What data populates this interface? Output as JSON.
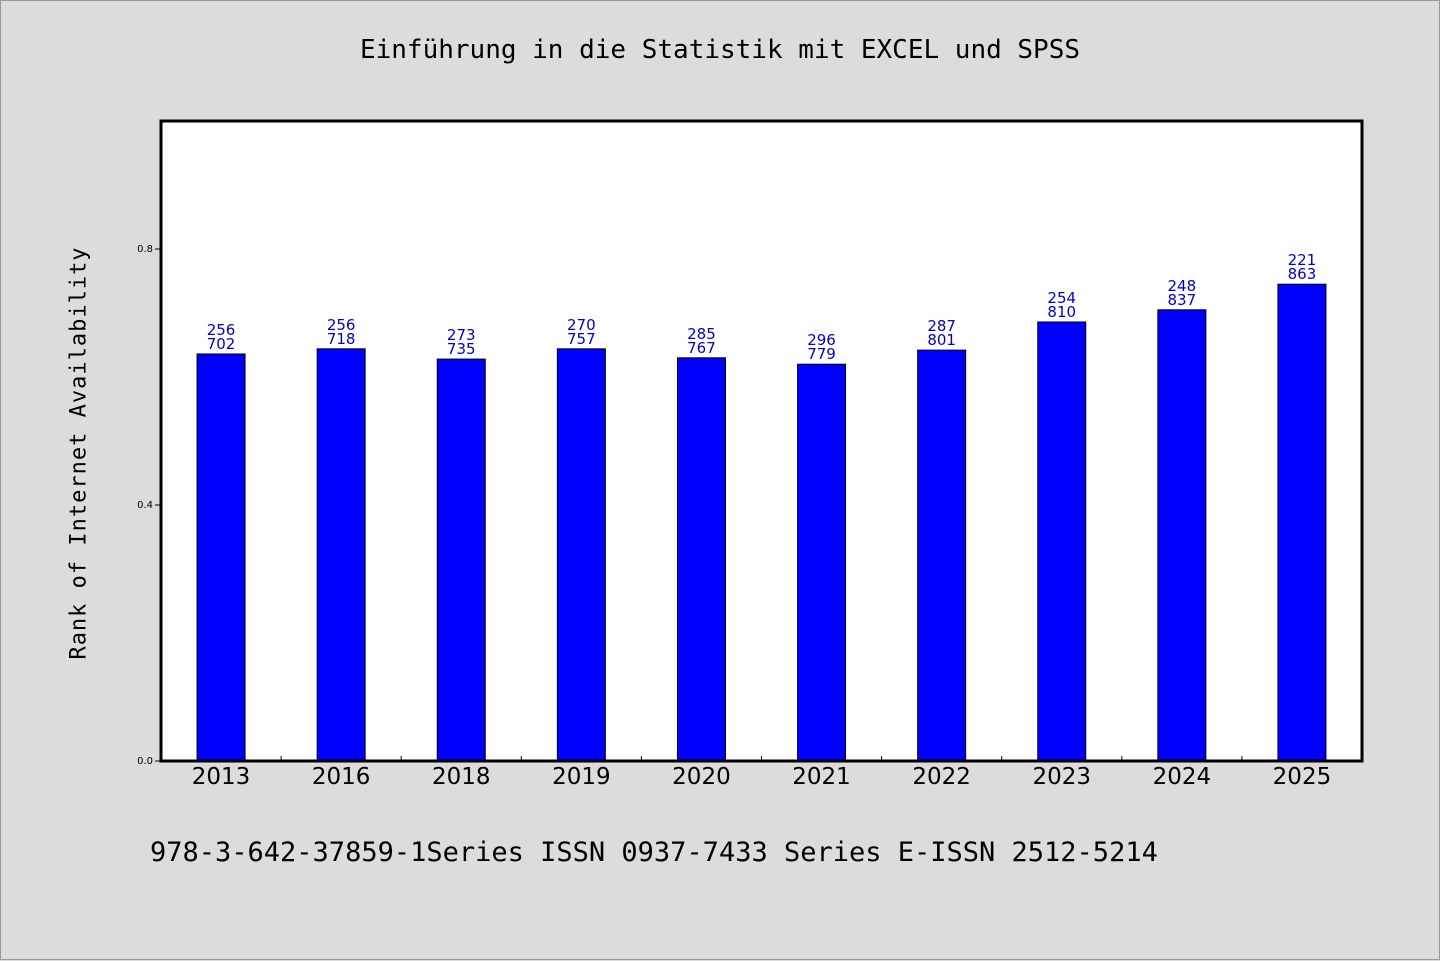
{
  "chart_data": {
    "type": "bar",
    "title": "Einführung in die Statistik mit EXCEL und SPSS",
    "ylabel": "Rank of Internet Availability",
    "xlabel": "",
    "categories": [
      "2013",
      "2016",
      "2018",
      "2019",
      "2020",
      "2021",
      "2022",
      "2023",
      "2024",
      "2025"
    ],
    "values": [
      0.636,
      0.644,
      0.628,
      0.644,
      0.63,
      0.62,
      0.642,
      0.686,
      0.705,
      0.745
    ],
    "data_labels": [
      [
        "256",
        "702"
      ],
      [
        "256",
        "718"
      ],
      [
        "273",
        "735"
      ],
      [
        "270",
        "757"
      ],
      [
        "285",
        "767"
      ],
      [
        "296",
        "779"
      ],
      [
        "287",
        "801"
      ],
      [
        "254",
        "810"
      ],
      [
        "248",
        "837"
      ],
      [
        "221",
        "863"
      ]
    ],
    "ylim": [
      0,
      1.0
    ],
    "yticks": [
      0.0,
      0.4,
      0.8
    ],
    "ytick_labels": [
      "0.0",
      "0.4",
      "0.8"
    ],
    "bar_color": "#0000ff",
    "label_color": "#0000cc",
    "grid": false
  },
  "footer": {
    "text": "978-3-642-37859-1Series ISSN 0937-7433 Series E-ISSN 2512-5214"
  }
}
